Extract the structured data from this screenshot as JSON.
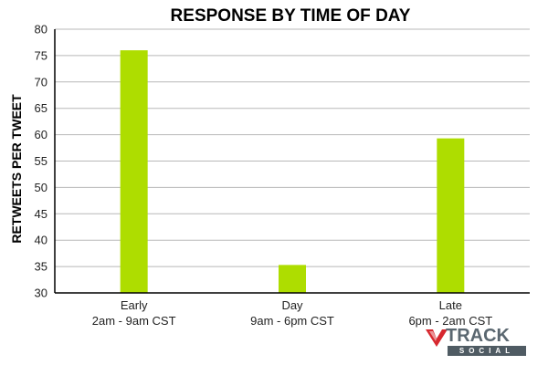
{
  "chart_data": {
    "type": "bar",
    "title": "RESPONSE BY TIME OF DAY",
    "ylabel": "RETWEETS PER TWEET",
    "xlabel": "",
    "ylim": [
      30,
      80
    ],
    "yticks": [
      "30",
      "35",
      "40",
      "45",
      "50",
      "55",
      "60",
      "65",
      "70",
      "75",
      "80"
    ],
    "grid": true,
    "categories": [
      {
        "line1": "Early",
        "line2": "2am - 9am CST"
      },
      {
        "line1": "Day",
        "line2": "9am - 6pm CST"
      },
      {
        "line1": "Late",
        "line2": "6pm - 2am CST"
      }
    ],
    "values": [
      76,
      35.3,
      59.3
    ],
    "bar_color": "#aedd00"
  },
  "logo": {
    "word1": "TRACK",
    "word2": "SOCIAL",
    "color_accent": "#d7282f"
  }
}
